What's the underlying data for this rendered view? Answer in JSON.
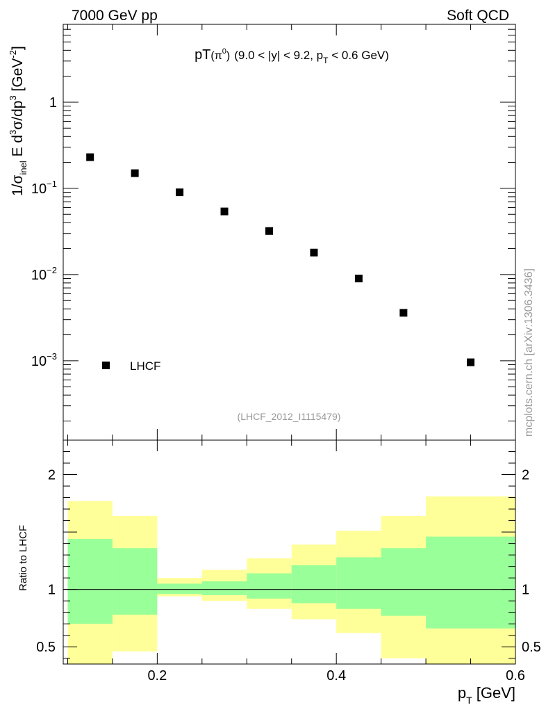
{
  "header": {
    "left": "7000 GeV pp",
    "right": "Soft QCD"
  },
  "side_label": "mcplots.cern.ch [arXiv:1306.3436]",
  "chart_data": [
    {
      "type": "scatter",
      "panel": "main",
      "title": {
        "prefix": "pT",
        "particle": "π",
        "particle_sup": "0",
        "cut_a": "(9.0 < |y| < 9.2, p",
        "cut_sub": "T",
        "cut_b": " < 0.6 GeV)"
      },
      "ylabel": {
        "p1": "1/σ",
        "sub1": "inel",
        "p2": " E d",
        "sup1": "3",
        "p3": "σ/dp",
        "sup2": "3",
        "p4": " [GeV",
        "sup3": "-2",
        "p5": "]"
      },
      "yscale": "log",
      "ylim": [
        0.00012,
        8
      ],
      "xlim": [
        0.095,
        0.6
      ],
      "y_ticks": [
        {
          "value": 1,
          "base": "1",
          "exp": ""
        },
        {
          "value": 0.1,
          "base": "10",
          "exp": "−1"
        },
        {
          "value": 0.01,
          "base": "10",
          "exp": "−2"
        },
        {
          "value": 0.001,
          "base": "10",
          "exp": "−3"
        }
      ],
      "series": [
        {
          "name": "LHCF",
          "marker": "square",
          "x": [
            0.125,
            0.175,
            0.225,
            0.275,
            0.325,
            0.375,
            0.425,
            0.475,
            0.55
          ],
          "y": [
            0.23,
            0.15,
            0.09,
            0.054,
            0.032,
            0.018,
            0.009,
            0.0036,
            0.00096
          ]
        }
      ],
      "legend_position": "bottom-left",
      "annotation": "(LHCF_2012_I1115479)"
    },
    {
      "type": "area",
      "panel": "ratio",
      "ylabel": "Ratio to LHCF",
      "xlabel": "p",
      "xlabel_sub": "T",
      "xlabel_unit": " [GeV]",
      "xlim": [
        0.095,
        0.6
      ],
      "ylim": [
        0.35,
        2.3
      ],
      "x_ticks": [
        {
          "value": 0.2,
          "label": "0.2"
        },
        {
          "value": 0.4,
          "label": "0.4"
        },
        {
          "value": 0.6,
          "label": "0.6"
        }
      ],
      "y_ticks": [
        {
          "value": 2,
          "label": "2"
        },
        {
          "value": 1,
          "label": "1"
        },
        {
          "value": 0.5,
          "label": "0.5"
        }
      ],
      "reference_line": 1,
      "bins": [
        {
          "lo": 0.1,
          "hi": 0.15,
          "y_lo": 0.35,
          "y_hi": 1.77,
          "g_lo": 0.7,
          "g_hi": 1.44
        },
        {
          "lo": 0.15,
          "hi": 0.2,
          "y_lo": 0.46,
          "y_hi": 1.64,
          "g_lo": 0.78,
          "g_hi": 1.36
        },
        {
          "lo": 0.2,
          "hi": 0.25,
          "y_lo": 0.94,
          "y_hi": 1.1,
          "g_lo": 0.96,
          "g_hi": 1.05
        },
        {
          "lo": 0.25,
          "hi": 0.3,
          "y_lo": 0.9,
          "y_hi": 1.17,
          "g_lo": 0.95,
          "g_hi": 1.07
        },
        {
          "lo": 0.3,
          "hi": 0.35,
          "y_lo": 0.83,
          "y_hi": 1.27,
          "g_lo": 0.92,
          "g_hi": 1.14
        },
        {
          "lo": 0.35,
          "hi": 0.4,
          "y_lo": 0.74,
          "y_hi": 1.39,
          "g_lo": 0.88,
          "g_hi": 1.21
        },
        {
          "lo": 0.4,
          "hi": 0.45,
          "y_lo": 0.62,
          "y_hi": 1.51,
          "g_lo": 0.83,
          "g_hi": 1.28
        },
        {
          "lo": 0.45,
          "hi": 0.5,
          "y_lo": 0.4,
          "y_hi": 1.64,
          "g_lo": 0.77,
          "g_hi": 1.36
        },
        {
          "lo": 0.5,
          "hi": 0.6,
          "y_lo": 0.35,
          "y_hi": 1.81,
          "g_lo": 0.66,
          "g_hi": 1.46
        }
      ],
      "colors": {
        "yellow": "#ffff99",
        "green": "#99ff99"
      }
    }
  ]
}
